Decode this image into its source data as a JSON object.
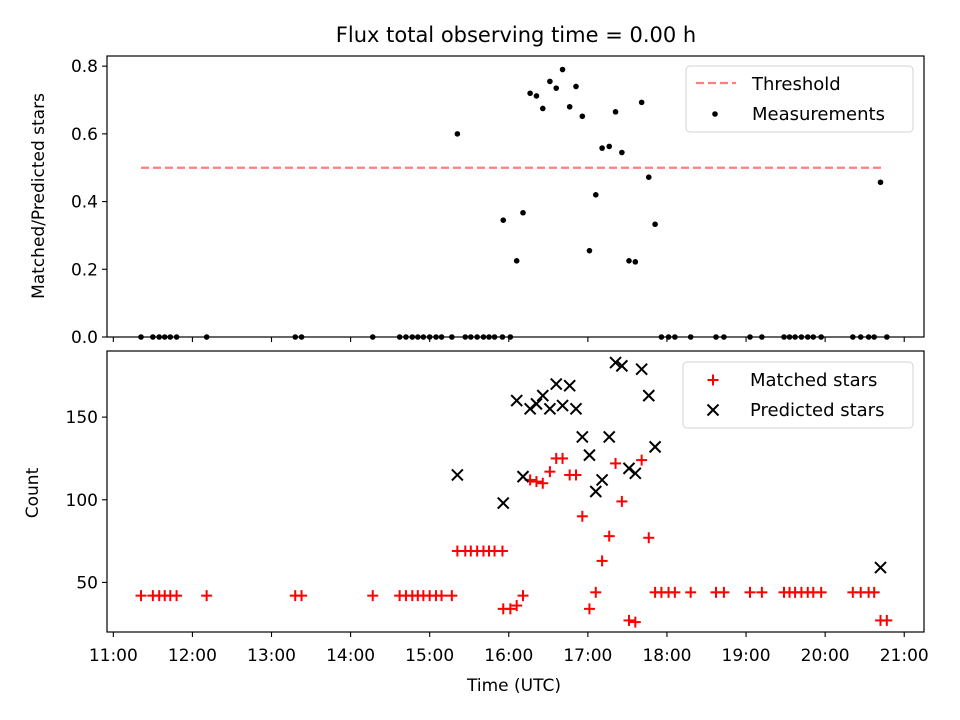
{
  "chart_data": [
    {
      "type": "scatter",
      "title": "Flux total observing time = 0.00 h",
      "ylabel": "Matched/Predicted stars",
      "xlabel": "",
      "ylim": [
        0,
        0.83
      ],
      "yticks": [
        0.0,
        0.2,
        0.4,
        0.6,
        0.8
      ],
      "ytick_labels": [
        "0.0",
        "0.2",
        "0.4",
        "0.6",
        "0.8"
      ],
      "xlim": [
        10.92,
        21.25
      ],
      "legend_position": "upper right",
      "threshold": {
        "name": "Threshold",
        "y": 0.5,
        "x_range": [
          11.35,
          20.75
        ],
        "color": "#ff7f7f",
        "style": "dashed"
      },
      "series": [
        {
          "name": "Measurements",
          "color": "#000000",
          "marker": "dot",
          "points": [
            [
              11.35,
              0
            ],
            [
              11.5,
              0
            ],
            [
              11.58,
              0
            ],
            [
              11.65,
              0
            ],
            [
              11.72,
              0
            ],
            [
              11.8,
              0
            ],
            [
              12.18,
              0
            ],
            [
              13.3,
              0
            ],
            [
              13.38,
              0
            ],
            [
              14.28,
              0
            ],
            [
              14.62,
              0
            ],
            [
              14.7,
              0
            ],
            [
              14.78,
              0
            ],
            [
              14.85,
              0
            ],
            [
              14.92,
              0
            ],
            [
              15.0,
              0
            ],
            [
              15.08,
              0
            ],
            [
              15.15,
              0
            ],
            [
              15.28,
              0
            ],
            [
              15.45,
              0
            ],
            [
              15.52,
              0
            ],
            [
              15.6,
              0
            ],
            [
              15.68,
              0
            ],
            [
              15.75,
              0
            ],
            [
              15.82,
              0
            ],
            [
              15.92,
              0
            ],
            [
              16.02,
              0
            ],
            [
              15.35,
              0.6
            ],
            [
              15.93,
              0.345
            ],
            [
              16.1,
              0.225
            ],
            [
              16.18,
              0.367
            ],
            [
              16.27,
              0.72
            ],
            [
              16.35,
              0.712
            ],
            [
              16.43,
              0.675
            ],
            [
              16.52,
              0.755
            ],
            [
              16.6,
              0.735
            ],
            [
              16.68,
              0.79
            ],
            [
              16.77,
              0.68
            ],
            [
              16.85,
              0.74
            ],
            [
              16.93,
              0.652
            ],
            [
              17.02,
              0.255
            ],
            [
              17.1,
              0.42
            ],
            [
              17.18,
              0.558
            ],
            [
              17.27,
              0.563
            ],
            [
              17.35,
              0.665
            ],
            [
              17.43,
              0.545
            ],
            [
              17.52,
              0.225
            ],
            [
              17.6,
              0.222
            ],
            [
              17.68,
              0.693
            ],
            [
              17.77,
              0.472
            ],
            [
              17.85,
              0.333
            ],
            [
              17.93,
              0
            ],
            [
              18.02,
              0
            ],
            [
              18.1,
              0
            ],
            [
              18.3,
              0
            ],
            [
              18.62,
              0
            ],
            [
              18.72,
              0
            ],
            [
              19.05,
              0
            ],
            [
              19.2,
              0
            ],
            [
              19.48,
              0
            ],
            [
              19.55,
              0
            ],
            [
              19.62,
              0
            ],
            [
              19.7,
              0
            ],
            [
              19.78,
              0
            ],
            [
              19.85,
              0
            ],
            [
              19.95,
              0
            ],
            [
              20.35,
              0
            ],
            [
              20.45,
              0
            ],
            [
              20.55,
              0
            ],
            [
              20.62,
              0
            ],
            [
              20.7,
              0.457
            ],
            [
              20.78,
              0
            ]
          ]
        }
      ]
    },
    {
      "type": "scatter",
      "title": "",
      "ylabel": "Count",
      "xlabel": "Time (UTC)",
      "ylim": [
        20,
        190
      ],
      "yticks": [
        50,
        100,
        150
      ],
      "ytick_labels": [
        "50",
        "100",
        "150"
      ],
      "xlim": [
        10.92,
        21.25
      ],
      "xticks": [
        11,
        12,
        13,
        14,
        15,
        16,
        17,
        18,
        19,
        20,
        21
      ],
      "xtick_labels": [
        "11:00",
        "12:00",
        "13:00",
        "14:00",
        "15:00",
        "16:00",
        "17:00",
        "18:00",
        "19:00",
        "20:00",
        "21:00"
      ],
      "legend_position": "upper right",
      "series": [
        {
          "name": "Matched stars",
          "color": "#ff0000",
          "marker": "plus",
          "points": [
            [
              11.35,
              42
            ],
            [
              11.5,
              42
            ],
            [
              11.58,
              42
            ],
            [
              11.65,
              42
            ],
            [
              11.72,
              42
            ],
            [
              11.8,
              42
            ],
            [
              12.18,
              42
            ],
            [
              13.3,
              42
            ],
            [
              13.38,
              42
            ],
            [
              14.28,
              42
            ],
            [
              14.62,
              42
            ],
            [
              14.7,
              42
            ],
            [
              14.78,
              42
            ],
            [
              14.85,
              42
            ],
            [
              14.92,
              42
            ],
            [
              15.0,
              42
            ],
            [
              15.08,
              42
            ],
            [
              15.15,
              42
            ],
            [
              15.28,
              42
            ],
            [
              15.35,
              69
            ],
            [
              15.45,
              69
            ],
            [
              15.52,
              69
            ],
            [
              15.6,
              69
            ],
            [
              15.68,
              69
            ],
            [
              15.75,
              69
            ],
            [
              15.82,
              69
            ],
            [
              15.92,
              69
            ],
            [
              15.93,
              34
            ],
            [
              16.02,
              34
            ],
            [
              16.1,
              36
            ],
            [
              16.18,
              42
            ],
            [
              16.27,
              112
            ],
            [
              16.35,
              111
            ],
            [
              16.43,
              110
            ],
            [
              16.52,
              117
            ],
            [
              16.6,
              125
            ],
            [
              16.68,
              125
            ],
            [
              16.77,
              115
            ],
            [
              16.85,
              115
            ],
            [
              16.93,
              90
            ],
            [
              17.02,
              34
            ],
            [
              17.1,
              44
            ],
            [
              17.18,
              63
            ],
            [
              17.27,
              78
            ],
            [
              17.35,
              122
            ],
            [
              17.43,
              99
            ],
            [
              17.52,
              27
            ],
            [
              17.6,
              26
            ],
            [
              17.68,
              124
            ],
            [
              17.77,
              77
            ],
            [
              17.85,
              44
            ],
            [
              17.93,
              44
            ],
            [
              18.02,
              44
            ],
            [
              18.1,
              44
            ],
            [
              18.3,
              44
            ],
            [
              18.62,
              44
            ],
            [
              18.72,
              44
            ],
            [
              19.05,
              44
            ],
            [
              19.2,
              44
            ],
            [
              19.48,
              44
            ],
            [
              19.55,
              44
            ],
            [
              19.62,
              44
            ],
            [
              19.7,
              44
            ],
            [
              19.78,
              44
            ],
            [
              19.85,
              44
            ],
            [
              19.95,
              44
            ],
            [
              20.35,
              44
            ],
            [
              20.45,
              44
            ],
            [
              20.55,
              44
            ],
            [
              20.62,
              44
            ],
            [
              20.7,
              27
            ],
            [
              20.78,
              27
            ]
          ]
        },
        {
          "name": "Predicted stars",
          "color": "#000000",
          "marker": "x",
          "points": [
            [
              15.35,
              115
            ],
            [
              15.93,
              98
            ],
            [
              16.1,
              160
            ],
            [
              16.18,
              114
            ],
            [
              16.27,
              155
            ],
            [
              16.35,
              158
            ],
            [
              16.43,
              163
            ],
            [
              16.52,
              155
            ],
            [
              16.6,
              170
            ],
            [
              16.68,
              157
            ],
            [
              16.77,
              169
            ],
            [
              16.85,
              155
            ],
            [
              16.93,
              138
            ],
            [
              17.02,
              127
            ],
            [
              17.1,
              105
            ],
            [
              17.18,
              112
            ],
            [
              17.27,
              138
            ],
            [
              17.35,
              183
            ],
            [
              17.43,
              181
            ],
            [
              17.52,
              119
            ],
            [
              17.6,
              116
            ],
            [
              17.68,
              179
            ],
            [
              17.77,
              163
            ],
            [
              17.85,
              132
            ],
            [
              20.7,
              59
            ]
          ]
        }
      ]
    }
  ]
}
